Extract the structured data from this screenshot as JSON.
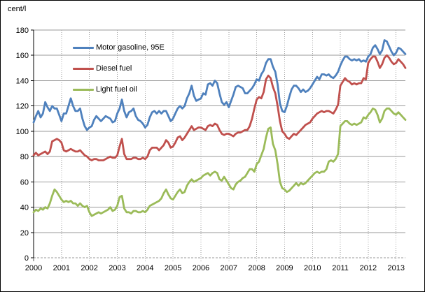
{
  "chart": {
    "y_unit_label": "cent/l"
  },
  "chart_data": {
    "type": "line",
    "title": "",
    "y_unit": "cent/l",
    "ylabel": "cent/l",
    "xlabel": "",
    "ylim": [
      0,
      180
    ],
    "ytick_interval": 20,
    "ytick_labels": [
      "0",
      "20",
      "40",
      "60",
      "80",
      "100",
      "120",
      "140",
      "160",
      "180"
    ],
    "xtick_labels": [
      "2000",
      "2001",
      "2002",
      "2003",
      "2004",
      "2005",
      "2006",
      "2007",
      "2008",
      "2009",
      "2010",
      "2011",
      "2012",
      "2013"
    ],
    "frequency": "monthly",
    "x_range": "Jan 2000 - May 2013",
    "grid": {
      "horizontal": "solid-gray",
      "vertical": "dotted-gray-at-years",
      "zero_line": "dashed-gray"
    },
    "legend_position": "inside-top-left",
    "series": [
      {
        "name": "Motor gasoline, 95E",
        "color": "#4F81BD",
        "values": [
          107,
          112,
          116,
          111,
          114,
          123,
          119,
          116,
          120,
          118,
          118,
          113,
          108,
          114,
          114,
          120,
          126,
          120,
          116,
          116,
          118,
          110,
          104,
          101,
          103,
          104,
          109,
          112,
          110,
          108,
          110,
          112,
          111,
          110,
          107,
          108,
          114,
          118,
          125,
          116,
          111,
          115,
          116,
          118,
          112,
          109,
          108,
          106,
          103,
          105,
          111,
          115,
          116,
          114,
          116,
          114,
          116,
          116,
          112,
          108,
          110,
          114,
          118,
          120,
          118,
          120,
          126,
          130,
          136,
          128,
          124,
          125,
          126,
          130,
          129,
          137,
          138,
          136,
          140,
          138,
          130,
          123,
          121,
          123,
          119,
          124,
          129,
          135,
          136,
          135,
          134,
          130,
          130,
          132,
          134,
          137,
          141,
          140,
          145,
          148,
          154,
          157,
          157,
          151,
          147,
          137,
          122,
          116,
          115,
          120,
          127,
          133,
          136,
          136,
          134,
          131,
          133,
          131,
          132,
          134,
          137,
          140,
          143,
          141,
          145,
          145,
          144,
          145,
          143,
          142,
          144,
          147,
          152,
          156,
          159,
          159,
          157,
          156,
          157,
          156,
          157,
          155,
          156,
          155,
          159,
          161,
          166,
          168,
          165,
          161,
          164,
          172,
          171,
          167,
          163,
          160,
          162,
          166,
          165,
          163,
          161
        ]
      },
      {
        "name": "Diesel fuel",
        "color": "#C0504D",
        "values": [
          81,
          83,
          81,
          82,
          83,
          84,
          82,
          84,
          92,
          93,
          94,
          93,
          91,
          85,
          84,
          85,
          86,
          85,
          84,
          84,
          85,
          83,
          81,
          80,
          78,
          77,
          78,
          78,
          77,
          77,
          77,
          78,
          79,
          80,
          79,
          79,
          81,
          88,
          94,
          82,
          78,
          78,
          78,
          79,
          79,
          78,
          78,
          79,
          78,
          80,
          85,
          87,
          87,
          87,
          85,
          87,
          89,
          93,
          91,
          87,
          88,
          91,
          95,
          96,
          93,
          95,
          98,
          101,
          104,
          101,
          102,
          103,
          103,
          102,
          101,
          104,
          105,
          104,
          106,
          105,
          101,
          98,
          97,
          98,
          98,
          97,
          96,
          98,
          99,
          99,
          100,
          101,
          101,
          104,
          110,
          118,
          125,
          127,
          126,
          131,
          141,
          144,
          142,
          135,
          130,
          120,
          108,
          100,
          98,
          95,
          94,
          96,
          98,
          97,
          99,
          101,
          103,
          105,
          106,
          107,
          110,
          112,
          114,
          115,
          116,
          115,
          116,
          116,
          115,
          114,
          117,
          121,
          136,
          139,
          142,
          140,
          139,
          137,
          138,
          137,
          138,
          138,
          142,
          141,
          154,
          157,
          159,
          159,
          155,
          150,
          153,
          158,
          160,
          158,
          155,
          153,
          154,
          157,
          155,
          153,
          150
        ]
      },
      {
        "name": "Light fuel oil",
        "color": "#9BBB59",
        "values": [
          36,
          38,
          37,
          39,
          38,
          40,
          39,
          43,
          49,
          54,
          52,
          49,
          46,
          44,
          45,
          44,
          45,
          43,
          43,
          41,
          43,
          41,
          40,
          41,
          36,
          33,
          34,
          35,
          36,
          35,
          36,
          37,
          38,
          40,
          37,
          38,
          41,
          48,
          49,
          39,
          36,
          36,
          35,
          37,
          37,
          36,
          36,
          37,
          36,
          38,
          41,
          42,
          43,
          44,
          45,
          47,
          51,
          54,
          50,
          47,
          46,
          49,
          52,
          54,
          51,
          52,
          57,
          60,
          62,
          60,
          61,
          62,
          63,
          65,
          66,
          67,
          65,
          67,
          68,
          67,
          62,
          61,
          64,
          61,
          58,
          55,
          54,
          58,
          60,
          61,
          63,
          64,
          67,
          70,
          70,
          68,
          74,
          76,
          81,
          86,
          95,
          102,
          103,
          90,
          85,
          74,
          60,
          55,
          54,
          52,
          53,
          55,
          57,
          59,
          57,
          59,
          58,
          59,
          61,
          63,
          65,
          67,
          68,
          67,
          68,
          68,
          70,
          76,
          77,
          76,
          78,
          82,
          104,
          106,
          108,
          108,
          106,
          105,
          106,
          105,
          106,
          107,
          111,
          110,
          113,
          115,
          118,
          117,
          113,
          107,
          110,
          116,
          118,
          118,
          116,
          114,
          113,
          115,
          113,
          111,
          109
        ]
      }
    ]
  }
}
